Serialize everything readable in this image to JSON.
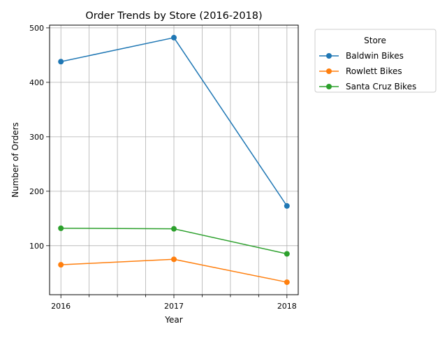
{
  "chart_data": {
    "type": "line",
    "title": "Order Trends by Store (2016-2018)",
    "xlabel": "Year",
    "ylabel": "Number of Orders",
    "x": [
      2016,
      2017,
      2018
    ],
    "x_tick_labels": [
      "2016",
      "2017",
      "2018"
    ],
    "xlim": [
      2015.9,
      2018.1
    ],
    "ylim": [
      10,
      505
    ],
    "y_ticks": [
      100,
      200,
      300,
      400,
      500
    ],
    "grid": true,
    "legend": {
      "title": "Store",
      "placement": "outside-upper-right"
    },
    "series": [
      {
        "name": "Baldwin Bikes",
        "color": "#1f77b4",
        "values": [
          438,
          482,
          173
        ]
      },
      {
        "name": "Rowlett Bikes",
        "color": "#ff7f0e",
        "values": [
          65,
          75,
          33
        ]
      },
      {
        "name": "Santa Cruz Bikes",
        "color": "#2ca02c",
        "values": [
          132,
          131,
          85
        ]
      }
    ]
  }
}
